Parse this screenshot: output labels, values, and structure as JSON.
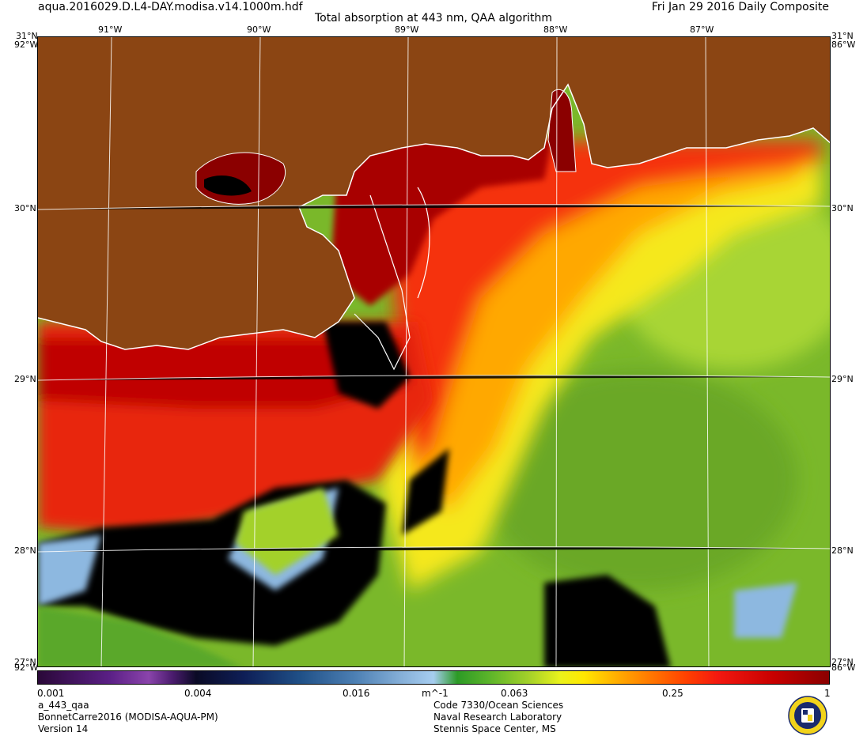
{
  "header": {
    "filename": "aqua.2016029.D.L4-DAY.modisa.v14.1000m.hdf",
    "title": "Total absorption at 443 nm, QAA algorithm",
    "date": "Fri Jan 29 2016 Daily Composite"
  },
  "map": {
    "lon_top_labels": [
      "91°W",
      "90°W",
      "89°W",
      "88°W",
      "87°W"
    ],
    "lat_labels": [
      "30°N",
      "29°N",
      "28°N"
    ],
    "corner_left_top": "31°N",
    "corner_right_top": "31°N",
    "corner_left_top_lon": "92°W",
    "corner_right_top_lon": "86°W",
    "corner_left_bottom": "92°W",
    "corner_right_bottom": "86°W",
    "corner_left_bottom_lat": "27°N",
    "corner_right_bottom_lat": "27°N",
    "land_color": "#8b4513",
    "nodata_color": "#000000",
    "coastline_color": "#ffffff"
  },
  "colorbar": {
    "scale": "log",
    "ticks": [
      "0.001",
      "0.004",
      "0.016",
      "m^-1",
      "0.063",
      "0.25",
      "1"
    ]
  },
  "footer": {
    "left": [
      "a_443_qaa",
      "BonnetCarre2016 (MODISA-AQUA-PM)",
      "Version 14"
    ],
    "right": [
      "Code 7330/Ocean Sciences",
      "Naval Research Laboratory",
      "Stennis Space Center, MS"
    ]
  }
}
